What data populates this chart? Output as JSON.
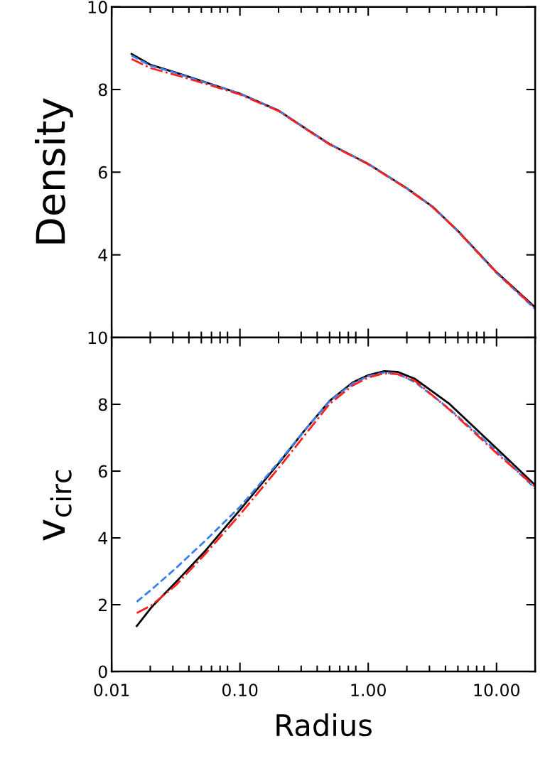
{
  "chart_data": [
    {
      "type": "line",
      "ylabel": "Density",
      "log": "x",
      "xlim": [
        0.01,
        20
      ],
      "ylim": [
        2,
        10
      ],
      "yticks": [
        {
          "value": 2,
          "label": null
        },
        4,
        6,
        8,
        {
          "value": 10,
          "label": "10"
        }
      ],
      "xticks": [
        {
          "value": 0.01,
          "label": null
        },
        {
          "value": 0.1,
          "label": null
        },
        {
          "value": 1,
          "label": null
        },
        {
          "value": 10,
          "label": null
        }
      ],
      "tick_labels": "y",
      "grid": false,
      "series": [
        {
          "color": "#000000",
          "line_style": "solid",
          "x": [
            0.0143,
            0.02,
            0.0316,
            0.05,
            0.1,
            0.2,
            0.316,
            0.5,
            1,
            2,
            3.16,
            5,
            10,
            20
          ],
          "values": [
            8.86,
            8.6,
            8.41,
            8.21,
            7.9,
            7.49,
            7.08,
            6.68,
            6.2,
            5.61,
            5.17,
            4.58,
            3.58,
            2.73
          ]
        },
        {
          "color": "#3a7ff0",
          "line_style": "dashed",
          "x": [
            0.0143,
            0.02,
            0.0316,
            0.05,
            0.1,
            0.2,
            0.316,
            0.5,
            1,
            2,
            3.16,
            5,
            10,
            20
          ],
          "values": [
            8.82,
            8.58,
            8.4,
            8.2,
            7.9,
            7.49,
            7.08,
            6.68,
            6.2,
            5.61,
            5.17,
            4.57,
            3.56,
            2.69
          ]
        },
        {
          "color": "#ff2020",
          "line_style": "dashdot",
          "x": [
            0.0143,
            0.02,
            0.0316,
            0.05,
            0.1,
            0.2,
            0.316,
            0.5,
            1,
            2,
            3.16,
            5,
            10,
            20
          ],
          "values": [
            8.74,
            8.52,
            8.35,
            8.17,
            7.88,
            7.48,
            7.07,
            6.67,
            6.19,
            5.6,
            5.16,
            4.57,
            3.57,
            2.71
          ]
        }
      ]
    },
    {
      "type": "line",
      "ylabel": "v$_{circ}$",
      "xlabel": "Radius",
      "log": "x",
      "xlim": [
        0.01,
        20
      ],
      "ylim": [
        0,
        10
      ],
      "yticks": [
        0,
        2,
        4,
        6,
        8,
        10
      ],
      "xticks": [
        {
          "value": 0.01,
          "label": "0.01"
        },
        {
          "value": 0.1,
          "label": "0.10"
        },
        {
          "value": 1,
          "label": "1.00"
        },
        {
          "value": 10,
          "label": "10.00"
        }
      ],
      "grid": false,
      "series": [
        {
          "color": "#000000",
          "line_style": "solid",
          "x": [
            0.0157,
            0.0204,
            0.0316,
            0.0545,
            0.1,
            0.204,
            0.316,
            0.502,
            0.76,
            1,
            1.33,
            1.69,
            2.32,
            4.24,
            10,
            20
          ],
          "values": [
            1.36,
            1.92,
            2.67,
            3.64,
            4.84,
            6.27,
            7.2,
            8.11,
            8.66,
            8.87,
            8.99,
            8.97,
            8.76,
            8.03,
            6.68,
            5.58
          ]
        },
        {
          "color": "#3a7ff0",
          "line_style": "dashed",
          "x": [
            0.0157,
            0.0204,
            0.0316,
            0.0545,
            0.1,
            0.204,
            0.316,
            0.502,
            0.76,
            1,
            1.33,
            1.69,
            2.32,
            4.24,
            10,
            20
          ],
          "values": [
            2.09,
            2.45,
            3.09,
            3.94,
            4.93,
            6.3,
            7.2,
            8.1,
            8.63,
            8.84,
            8.95,
            8.92,
            8.66,
            7.88,
            6.6,
            5.48
          ]
        },
        {
          "color": "#ff2020",
          "line_style": "dashdot",
          "x": [
            0.0157,
            0.0204,
            0.0316,
            0.0545,
            0.1,
            0.204,
            0.316,
            0.502,
            0.76,
            1,
            1.33,
            1.69,
            2.32,
            4.24,
            10,
            20
          ],
          "values": [
            1.75,
            1.98,
            2.58,
            3.55,
            4.7,
            6.13,
            7.05,
            8.02,
            8.57,
            8.8,
            8.93,
            8.9,
            8.7,
            7.86,
            6.54,
            5.53
          ]
        }
      ]
    }
  ]
}
